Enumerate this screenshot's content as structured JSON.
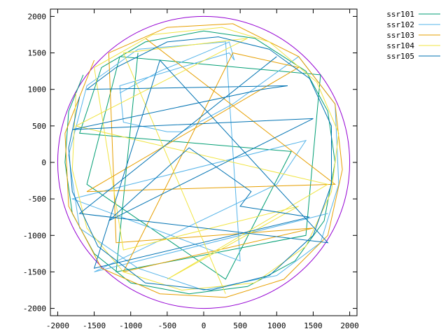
{
  "chart_data": {
    "type": "line",
    "xlim": [
      -2100,
      2100
    ],
    "ylim": [
      -2100,
      2100
    ],
    "xticks": [
      -2000,
      -1500,
      -1000,
      -500,
      0,
      500,
      1000,
      1500,
      2000
    ],
    "yticks": [
      -2000,
      -1500,
      -1000,
      -500,
      0,
      500,
      1000,
      1500,
      2000
    ],
    "grid": false,
    "legend_position": "outside-right-top",
    "boundary_circle": {
      "radius": 2000,
      "color": "#9400d3"
    },
    "series": [
      {
        "name": "ssr101",
        "color": "#009e73",
        "points": [
          [
            -1650,
            1200
          ],
          [
            -1850,
            700
          ],
          [
            -1900,
            0
          ],
          [
            -1800,
            -700
          ],
          [
            -1500,
            -1250
          ],
          [
            -1000,
            -1650
          ],
          [
            -200,
            -1800
          ],
          [
            600,
            -1700
          ],
          [
            1250,
            -1350
          ],
          [
            1650,
            -800
          ],
          [
            1800,
            0
          ],
          [
            1700,
            700
          ],
          [
            1400,
            1250
          ],
          [
            700,
            1700
          ],
          [
            0,
            1800
          ],
          [
            -800,
            1650
          ],
          [
            -1400,
            1300
          ],
          [
            -1700,
            400
          ],
          [
            1200,
            150
          ],
          [
            300,
            -1600
          ],
          [
            -1600,
            -300
          ],
          [
            -1150,
            1450
          ],
          [
            1600,
            1200
          ],
          [
            1400,
            -1000
          ],
          [
            -1200,
            -1500
          ],
          [
            -900,
            1500
          ]
        ]
      },
      {
        "name": "ssr102",
        "color": "#56b4e9",
        "points": [
          [
            -1150,
            950
          ],
          [
            -600,
            1250
          ],
          [
            0,
            1500
          ],
          [
            350,
            1650
          ],
          [
            420,
            1400
          ],
          [
            350,
            1500
          ],
          [
            -1150,
            1050
          ],
          [
            -1100,
            550
          ],
          [
            -500,
            420
          ],
          [
            -300,
            420
          ],
          [
            400,
            800
          ],
          [
            1300,
            1450
          ],
          [
            1800,
            800
          ],
          [
            1850,
            -300
          ],
          [
            1600,
            -1100
          ],
          [
            1000,
            -1550
          ],
          [
            0,
            -1750
          ],
          [
            -900,
            -1450
          ],
          [
            -1700,
            -900
          ],
          [
            -1850,
            100
          ],
          [
            -1600,
            1050
          ],
          [
            -900,
            1550
          ],
          [
            300,
            1650
          ],
          [
            500,
            -1350
          ],
          [
            -1800,
            -500
          ],
          [
            1400,
            300
          ],
          [
            1000,
            -300
          ],
          [
            -1500,
            -1500
          ],
          [
            1700,
            -700
          ]
        ]
      },
      {
        "name": "ssr103",
        "color": "#e69f00",
        "points": [
          [
            -1500,
            1400
          ],
          [
            -1900,
            400
          ],
          [
            -1850,
            -600
          ],
          [
            -1400,
            -1450
          ],
          [
            -600,
            -1800
          ],
          [
            300,
            -1850
          ],
          [
            1100,
            -1600
          ],
          [
            1700,
            -1000
          ],
          [
            1900,
            -100
          ],
          [
            1800,
            800
          ],
          [
            1300,
            1450
          ],
          [
            400,
            1900
          ],
          [
            -500,
            1850
          ],
          [
            -1300,
            1500
          ],
          [
            -1200,
            -1100
          ],
          [
            1500,
            -900
          ],
          [
            -1100,
            -1500
          ],
          [
            400,
            1500
          ],
          [
            1300,
            1300
          ],
          [
            -1600,
            -400
          ],
          [
            1800,
            -300
          ],
          [
            -800,
            1700
          ]
        ]
      },
      {
        "name": "ssr104",
        "color": "#f0e442",
        "points": [
          [
            -1750,
            950
          ],
          [
            -1800,
            -100
          ],
          [
            -1600,
            -900
          ],
          [
            -1100,
            -1500
          ],
          [
            -300,
            -1750
          ],
          [
            700,
            -1650
          ],
          [
            1400,
            -1150
          ],
          [
            1750,
            -400
          ],
          [
            1850,
            400
          ],
          [
            1550,
            1100
          ],
          [
            900,
            1650
          ],
          [
            250,
            1850
          ],
          [
            -700,
            1750
          ],
          [
            -1500,
            1300
          ],
          [
            -1100,
            -1200
          ],
          [
            1300,
            -600
          ],
          [
            -500,
            -1600
          ],
          [
            1700,
            -300
          ],
          [
            -1750,
            500
          ],
          [
            600,
            1700
          ],
          [
            -1100,
            1500
          ],
          [
            300,
            -1800
          ]
        ]
      },
      {
        "name": "ssr105",
        "color": "#0072b2",
        "points": [
          [
            -1700,
            900
          ],
          [
            -1850,
            200
          ],
          [
            -1800,
            -400
          ],
          [
            -1450,
            -1150
          ],
          [
            -800,
            -1650
          ],
          [
            100,
            -1750
          ],
          [
            900,
            -1550
          ],
          [
            1500,
            -1000
          ],
          [
            1750,
            -300
          ],
          [
            1750,
            500
          ],
          [
            1450,
            1150
          ],
          [
            900,
            1550
          ],
          [
            200,
            1720
          ],
          [
            -500,
            1650
          ],
          [
            -1200,
            1300
          ],
          [
            -1600,
            1000
          ],
          [
            1150,
            1050
          ],
          [
            800,
            1000
          ],
          [
            -1800,
            450
          ],
          [
            1500,
            600
          ],
          [
            -1300,
            -800
          ],
          [
            -200,
            200
          ],
          [
            650,
            -400
          ],
          [
            500,
            -600
          ],
          [
            1450,
            -750
          ],
          [
            -1500,
            -1450
          ],
          [
            -600,
            1400
          ],
          [
            1700,
            -1100
          ],
          [
            -1700,
            -700
          ],
          [
            1000,
            1450
          ]
        ]
      }
    ]
  }
}
